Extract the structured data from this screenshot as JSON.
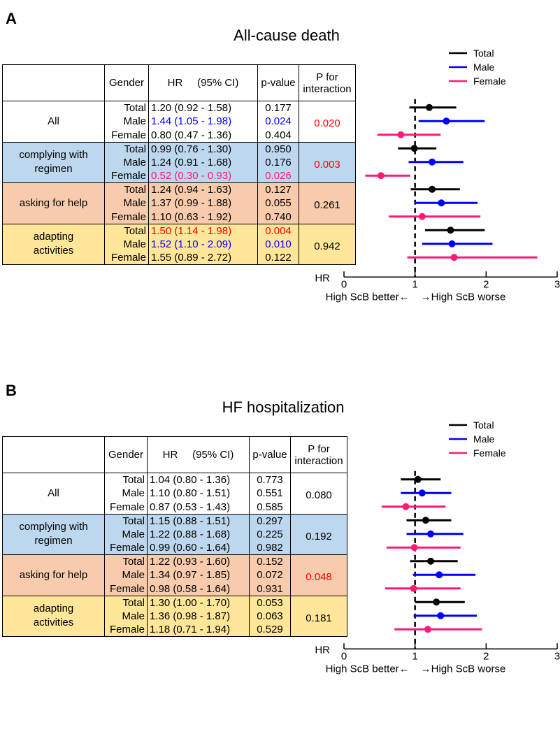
{
  "colors": {
    "Total": "#000000",
    "Male": "#0000ff",
    "Female": "#ff1a75",
    "highlight_red": "#ff0000",
    "blue_bg": "#bdd7ee",
    "orange_bg": "#f8cbad",
    "yellow_bg": "#ffe699"
  },
  "chart_data": [
    {
      "type": "forest",
      "panel": "A",
      "title": "All-cause death",
      "columns": {
        "gender": "Gender",
        "hr": "HR",
        "ci": "(95% CI)",
        "pvalue": "p-value",
        "pint_line1": "P for",
        "pint_line2": "interaction"
      },
      "legend": [
        "Total",
        "Male",
        "Female"
      ],
      "xlabel": "HR",
      "xlim": [
        0,
        3
      ],
      "xticks": [
        "0",
        "1",
        "2",
        "3"
      ],
      "reference": 1,
      "direction_left": "High ScB better←",
      "direction_right": "→High ScB worse",
      "groups": [
        {
          "label": "All",
          "bg": "",
          "p_interaction": "0.020",
          "pint_color": "#ff0000",
          "rows": [
            {
              "gender": "Total",
              "hr": 1.2,
              "lo": 0.92,
              "hi": 1.58,
              "text": "1.20 (0.92 - 1.58)",
              "p": "0.177",
              "color": "#000000"
            },
            {
              "gender": "Male",
              "hr": 1.44,
              "lo": 1.05,
              "hi": 1.98,
              "text": "1.44 (1.05 - 1.98)",
              "p": "0.024",
              "color": "#0000ff"
            },
            {
              "gender": "Female",
              "hr": 0.8,
              "lo": 0.47,
              "hi": 1.36,
              "text": "0.80 (0.47 - 1.36)",
              "p": "0.404",
              "color": "#000000"
            }
          ]
        },
        {
          "label": "complying with regimen",
          "bg": "blue",
          "p_interaction": "0.003",
          "pint_color": "#ff0000",
          "rows": [
            {
              "gender": "Total",
              "hr": 0.99,
              "lo": 0.76,
              "hi": 1.3,
              "text": "0.99 (0.76 - 1.30)",
              "p": "0.950",
              "color": "#000000"
            },
            {
              "gender": "Male",
              "hr": 1.24,
              "lo": 0.91,
              "hi": 1.68,
              "text": "1.24 (0.91 - 1.68)",
              "p": "0.176",
              "color": "#000000"
            },
            {
              "gender": "Female",
              "hr": 0.52,
              "lo": 0.3,
              "hi": 0.93,
              "text": "0.52 (0.30 - 0.93)",
              "p": "0.026",
              "color": "#ff1a75"
            }
          ]
        },
        {
          "label": "asking for help",
          "bg": "orange",
          "p_interaction": "0.261",
          "pint_color": "#000000",
          "rows": [
            {
              "gender": "Total",
              "hr": 1.24,
              "lo": 0.94,
              "hi": 1.63,
              "text": "1.24 (0.94 - 1.63)",
              "p": "0.127",
              "color": "#000000"
            },
            {
              "gender": "Male",
              "hr": 1.37,
              "lo": 0.99,
              "hi": 1.88,
              "text": "1.37 (0.99 - 1.88)",
              "p": "0.055",
              "color": "#000000"
            },
            {
              "gender": "Female",
              "hr": 1.1,
              "lo": 0.63,
              "hi": 1.92,
              "text": "1.10 (0.63 - 1.92)",
              "p": "0.740",
              "color": "#000000"
            }
          ]
        },
        {
          "label": "adapting activities",
          "bg": "yellow",
          "p_interaction": "0.942",
          "pint_color": "#000000",
          "rows": [
            {
              "gender": "Total",
              "hr": 1.5,
              "lo": 1.14,
              "hi": 1.98,
              "text": "1.50 (1.14 - 1.98)",
              "p": "0.004",
              "color": "#ff0000"
            },
            {
              "gender": "Male",
              "hr": 1.52,
              "lo": 1.1,
              "hi": 2.09,
              "text": "1.52 (1.10 - 2.09)",
              "p": "0.010",
              "color": "#0000ff"
            },
            {
              "gender": "Female",
              "hr": 1.55,
              "lo": 0.89,
              "hi": 2.72,
              "text": "1.55 (0.89 - 2.72)",
              "p": "0.122",
              "color": "#000000"
            }
          ]
        }
      ]
    },
    {
      "type": "forest",
      "panel": "B",
      "title": "HF hospitalization",
      "columns": {
        "gender": "Gender",
        "hr": "HR",
        "ci": "(95% CI)",
        "pvalue": "p-value",
        "pint_line1": "P for",
        "pint_line2": "interaction"
      },
      "legend": [
        "Total",
        "Male",
        "Female"
      ],
      "xlabel": "HR",
      "xlim": [
        0,
        3
      ],
      "xticks": [
        "0",
        "1",
        "2",
        "3"
      ],
      "reference": 1,
      "direction_left": "High ScB better←",
      "direction_right": "→High ScB worse",
      "groups": [
        {
          "label": "All",
          "bg": "",
          "p_interaction": "0.080",
          "pint_color": "#000000",
          "rows": [
            {
              "gender": "Total",
              "hr": 1.04,
              "lo": 0.8,
              "hi": 1.36,
              "text": "1.04 (0.80 - 1.36)",
              "p": "0.773",
              "color": "#000000"
            },
            {
              "gender": "Male",
              "hr": 1.1,
              "lo": 0.8,
              "hi": 1.51,
              "text": "1.10 (0.80 - 1.51)",
              "p": "0.551",
              "color": "#000000"
            },
            {
              "gender": "Female",
              "hr": 0.87,
              "lo": 0.53,
              "hi": 1.43,
              "text": "0.87 (0.53 - 1.43)",
              "p": "0.585",
              "color": "#000000"
            }
          ]
        },
        {
          "label": "complying with regimen",
          "bg": "blue",
          "p_interaction": "0.192",
          "pint_color": "#000000",
          "rows": [
            {
              "gender": "Total",
              "hr": 1.15,
              "lo": 0.88,
              "hi": 1.51,
              "text": "1.15 (0.88 - 1.51)",
              "p": "0.297",
              "color": "#000000"
            },
            {
              "gender": "Male",
              "hr": 1.22,
              "lo": 0.88,
              "hi": 1.68,
              "text": "1.22 (0.88 - 1.68)",
              "p": "0.225",
              "color": "#000000"
            },
            {
              "gender": "Female",
              "hr": 0.99,
              "lo": 0.6,
              "hi": 1.64,
              "text": "0.99 (0.60 - 1.64)",
              "p": "0.982",
              "color": "#000000"
            }
          ]
        },
        {
          "label": "asking for help",
          "bg": "orange",
          "p_interaction": "0.048",
          "pint_color": "#ff0000",
          "rows": [
            {
              "gender": "Total",
              "hr": 1.22,
              "lo": 0.93,
              "hi": 1.6,
              "text": "1.22 (0.93 - 1.60)",
              "p": "0.152",
              "color": "#000000"
            },
            {
              "gender": "Male",
              "hr": 1.34,
              "lo": 0.97,
              "hi": 1.85,
              "text": "1.34 (0.97 - 1.85)",
              "p": "0.072",
              "color": "#000000"
            },
            {
              "gender": "Female",
              "hr": 0.98,
              "lo": 0.58,
              "hi": 1.64,
              "text": "0.98 (0.58 - 1.64)",
              "p": "0.931",
              "color": "#000000"
            }
          ]
        },
        {
          "label": "adapting activities",
          "bg": "yellow",
          "p_interaction": "0.181",
          "pint_color": "#000000",
          "rows": [
            {
              "gender": "Total",
              "hr": 1.3,
              "lo": 1.0,
              "hi": 1.7,
              "text": "1.30 (1.00 - 1.70)",
              "p": "0.053",
              "color": "#000000"
            },
            {
              "gender": "Male",
              "hr": 1.36,
              "lo": 0.98,
              "hi": 1.87,
              "text": "1.36 (0.98 - 1.87)",
              "p": "0.063",
              "color": "#000000"
            },
            {
              "gender": "Female",
              "hr": 1.18,
              "lo": 0.71,
              "hi": 1.94,
              "text": "1.18 (0.71 - 1.94)",
              "p": "0.529",
              "color": "#000000"
            }
          ]
        }
      ]
    }
  ]
}
